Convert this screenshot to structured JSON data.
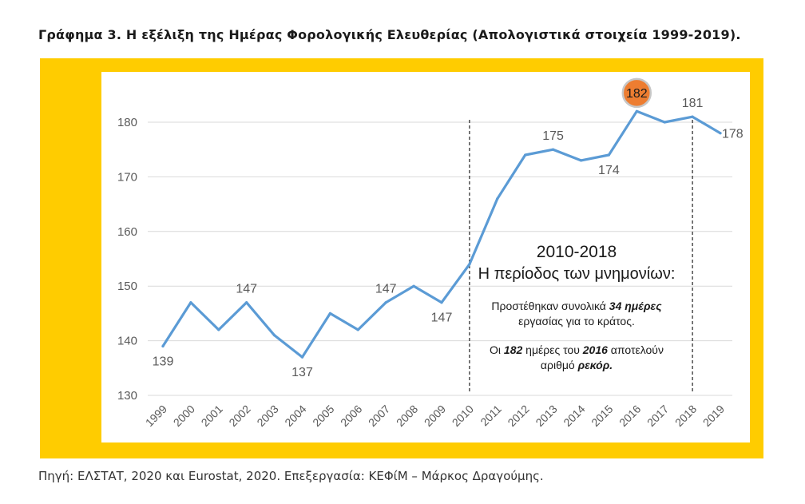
{
  "title": "Γράφημα 3. Η εξέλιξη της Ημέρας Φορολογικής Ελευθερίας (Απολογιστικά στοιχεία 1999-2019).",
  "source": "Πηγή: ΕΛΣΤΑΤ, 2020 και Eurostat, 2020. Επεξεργασία: ΚΕΦίΜ – Μάρκος Δραγούμης.",
  "colors": {
    "frame": "#ffcc00",
    "line": "#5b9bd5",
    "highlight": "#ed7d31",
    "grid": "#d9d9d9",
    "text": "#595959"
  },
  "chart_data": {
    "type": "line",
    "categories": [
      "1999",
      "2000",
      "2001",
      "2002",
      "2003",
      "2004",
      "2005",
      "2006",
      "2007",
      "2008",
      "2009",
      "2010",
      "2011",
      "2012",
      "2013",
      "2014",
      "2015",
      "2016",
      "2017",
      "2018",
      "2019"
    ],
    "series": [
      {
        "values": [
          139,
          147,
          142,
          147,
          141,
          137,
          145,
          142,
          147,
          150,
          147,
          154,
          166,
          174,
          175,
          173,
          174,
          182,
          180,
          181,
          178
        ]
      }
    ],
    "ylim": [
      130,
      180
    ],
    "yticks": [
      130,
      140,
      150,
      160,
      170,
      180
    ],
    "grid": true,
    "data_labels": [
      {
        "year": "1999",
        "text": "139",
        "pos": "below"
      },
      {
        "year": "2002",
        "text": "147",
        "pos": "above"
      },
      {
        "year": "2004",
        "text": "137",
        "pos": "below"
      },
      {
        "year": "2007",
        "text": "147",
        "pos": "above"
      },
      {
        "year": "2009",
        "text": "147",
        "pos": "below"
      },
      {
        "year": "2013",
        "text": "175",
        "pos": "above"
      },
      {
        "year": "2015",
        "text": "174",
        "pos": "below"
      },
      {
        "year": "2016",
        "text": "182",
        "pos": "highlight"
      },
      {
        "year": "2018",
        "text": "181",
        "pos": "above"
      },
      {
        "year": "2019",
        "text": "178",
        "pos": "right"
      }
    ],
    "period_markers": [
      "2010",
      "2018"
    ],
    "annotation": {
      "heading": "2010-2018",
      "subheading": "Η περίοδος των μνημονίων:",
      "note1": [
        {
          "text": "Προστέθηκαν συνολικά ",
          "style": "normal"
        },
        {
          "text": "34 ημέρες",
          "style": "bold-italic"
        },
        {
          "text": "εργασίας για το κράτος.",
          "style": "normal",
          "newline": true
        }
      ],
      "note2": [
        {
          "text": "Οι ",
          "style": "normal"
        },
        {
          "text": "182",
          "style": "bold-italic"
        },
        {
          "text": " ημέρες του ",
          "style": "normal"
        },
        {
          "text": "2016",
          "style": "bold-italic"
        },
        {
          "text": " αποτελούν",
          "style": "normal"
        },
        {
          "text": "αριθμό ",
          "style": "normal",
          "newline": true
        },
        {
          "text": "ρεκόρ.",
          "style": "bold-italic"
        }
      ]
    }
  }
}
